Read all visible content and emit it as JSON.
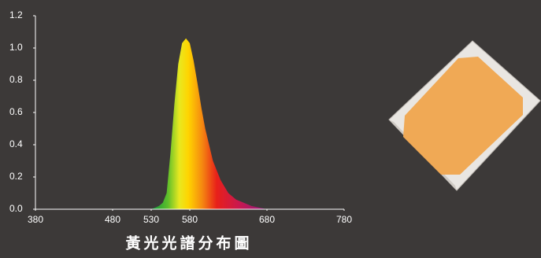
{
  "chart_data": {
    "type": "area",
    "title": "黃光光譜分布圖",
    "x": [
      380,
      530,
      540,
      545,
      550,
      555,
      560,
      565,
      570,
      575,
      580,
      585,
      590,
      595,
      600,
      610,
      620,
      630,
      640,
      660,
      680,
      780
    ],
    "values": [
      0,
      0,
      0.02,
      0.04,
      0.1,
      0.35,
      0.65,
      0.9,
      1.03,
      1.06,
      1.03,
      0.92,
      0.78,
      0.63,
      0.5,
      0.3,
      0.18,
      0.1,
      0.06,
      0.02,
      0,
      0
    ],
    "xlim": [
      380,
      780
    ],
    "xticks": [
      380,
      480,
      530,
      580,
      680,
      780
    ],
    "ylim": [
      0,
      1.2
    ],
    "yticks": [
      {
        "value": 0,
        "label": "0.0"
      },
      0.2,
      0.4,
      0.6,
      0.8,
      {
        "value": 1,
        "label": "1.0"
      },
      1.2
    ]
  }
}
